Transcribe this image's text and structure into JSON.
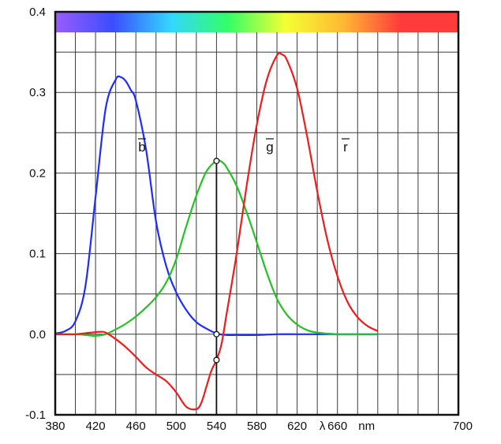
{
  "chart_data": {
    "type": "line",
    "title": "",
    "xlabel": "",
    "ylabel": "",
    "xlim": [
      380,
      780
    ],
    "ylim": [
      -0.1,
      0.4
    ],
    "grid": true,
    "x_ticks": [
      {
        "value": 380,
        "label": "380"
      },
      {
        "value": 420,
        "label": "420"
      },
      {
        "value": 460,
        "label": "460"
      },
      {
        "value": 500,
        "label": "500"
      },
      {
        "value": 540,
        "label": "540"
      },
      {
        "value": 580,
        "label": "580"
      },
      {
        "value": 620,
        "label": "620"
      },
      {
        "value": 660,
        "label": "660"
      },
      {
        "value": 700,
        "label": "700"
      }
    ],
    "x_unit_labels": [
      {
        "after": 620,
        "label": "λ"
      },
      {
        "after": 660,
        "label": "nm"
      }
    ],
    "y_ticks": [
      {
        "value": 0.4,
        "label": "0.4"
      },
      {
        "value": 0.3,
        "label": "0.3"
      },
      {
        "value": 0.2,
        "label": "0.2"
      },
      {
        "value": 0.1,
        "label": "0.1"
      },
      {
        "value": 0.0,
        "label": "0.0"
      },
      {
        "value": -0.1,
        "label": "-0.1"
      }
    ],
    "vertical_marker": {
      "x": 540,
      "points_y": [
        0.215,
        0.0,
        -0.032
      ]
    },
    "spectrum_band": {
      "colors": [
        "#9b5cff",
        "#3a4dff",
        "#33d6ff",
        "#33ff66",
        "#f5ff33",
        "#ffb833",
        "#ff3b3b",
        "#ff3b3b"
      ]
    },
    "series": [
      {
        "name": "b",
        "color": "#1f2bff",
        "x": [
          380,
          390,
          400,
          410,
          420,
          430,
          440,
          445,
          450,
          455,
          460,
          470,
          480,
          490,
          500,
          510,
          520,
          530,
          540,
          550,
          560,
          580,
          600,
          620,
          640,
          660,
          680,
          700
        ],
        "y": [
          0.001,
          0.004,
          0.016,
          0.06,
          0.17,
          0.28,
          0.316,
          0.319,
          0.314,
          0.303,
          0.29,
          0.23,
          0.14,
          0.085,
          0.052,
          0.03,
          0.015,
          0.007,
          0.001,
          -0.001,
          -0.001,
          -0.001,
          0.0,
          0.0,
          0.0,
          0.0,
          0.0,
          0.0
        ]
      },
      {
        "name": "g",
        "color": "#22c322",
        "x": [
          380,
          400,
          410,
          420,
          430,
          440,
          450,
          460,
          470,
          480,
          490,
          500,
          510,
          520,
          530,
          540,
          545,
          550,
          560,
          570,
          580,
          590,
          600,
          610,
          620,
          630,
          640,
          660,
          680,
          700
        ],
        "y": [
          0.0,
          0.0,
          -0.001,
          -0.002,
          0.0,
          0.006,
          0.013,
          0.022,
          0.033,
          0.046,
          0.064,
          0.093,
          0.134,
          0.172,
          0.202,
          0.215,
          0.214,
          0.207,
          0.184,
          0.151,
          0.114,
          0.076,
          0.044,
          0.024,
          0.012,
          0.005,
          0.002,
          0.0,
          0.0,
          0.0
        ]
      },
      {
        "name": "r",
        "color": "#ee1c1c",
        "x": [
          380,
          400,
          415,
          425,
          430,
          440,
          450,
          460,
          470,
          480,
          490,
          500,
          510,
          520,
          525,
          530,
          535,
          540,
          545,
          550,
          560,
          570,
          580,
          590,
          600,
          605,
          610,
          620,
          630,
          640,
          650,
          660,
          670,
          680,
          690,
          700
        ],
        "y": [
          0.0,
          0.0,
          0.002,
          0.003,
          0.002,
          -0.006,
          -0.016,
          -0.028,
          -0.041,
          -0.05,
          -0.058,
          -0.072,
          -0.09,
          -0.093,
          -0.085,
          -0.065,
          -0.045,
          -0.032,
          -0.012,
          0.025,
          0.1,
          0.185,
          0.26,
          0.316,
          0.346,
          0.347,
          0.34,
          0.305,
          0.245,
          0.177,
          0.117,
          0.072,
          0.04,
          0.021,
          0.01,
          0.004
        ]
      }
    ]
  }
}
